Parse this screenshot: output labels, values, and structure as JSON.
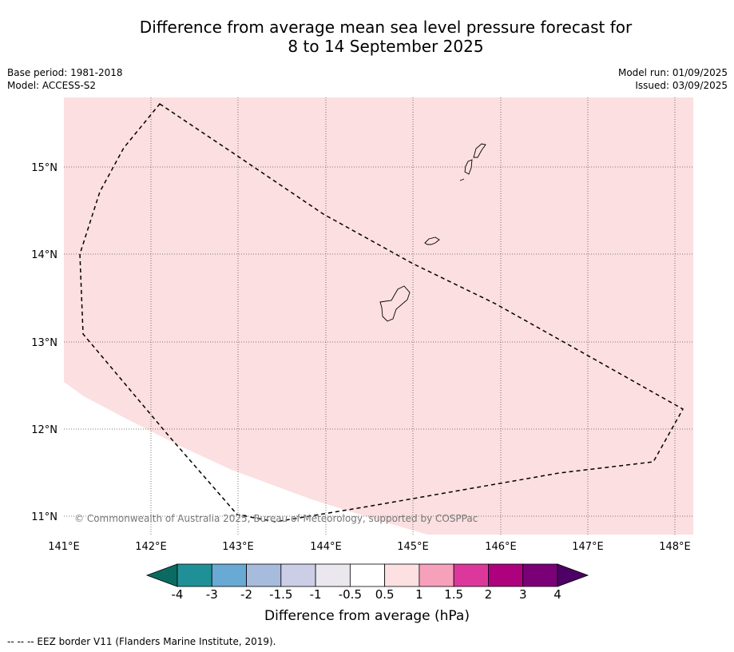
{
  "title_line1": "Difference from average mean sea level pressure forecast for",
  "title_line2": "8 to 14 September 2025",
  "meta": {
    "base_period": "Base period: 1981-2018",
    "model": "Model: ACCESS-S2",
    "model_run": "Model run: 01/09/2025",
    "issued": "Issued: 03/09/2025"
  },
  "map": {
    "lon_ticks": [
      "141°E",
      "142°E",
      "143°E",
      "144°E",
      "145°E",
      "146°E",
      "147°E",
      "148°E"
    ],
    "lat_ticks": [
      "15°N",
      "14°N",
      "13°N",
      "12°N",
      "11°N"
    ],
    "copyright": "© Commonwealth of Australia 2025, Bureau of Meteorology, supported by COSPPac",
    "field_color": "#fcdfe0",
    "background_color": "#ffffff"
  },
  "colorbar": {
    "label": "Difference from average (hPa)",
    "ticks": [
      "-4",
      "-3",
      "-2",
      "-1.5",
      "-1",
      "-0.5",
      "0.5",
      "1",
      "1.5",
      "2",
      "3",
      "4"
    ],
    "colors": [
      "#0b6b62",
      "#1f9196",
      "#68aad3",
      "#a7bbdd",
      "#cccde6",
      "#eae8ee",
      "#ffffff",
      "#fde0e1",
      "#f7a0bc",
      "#dc389c",
      "#ad017e",
      "#7b0078",
      "#4d0066"
    ]
  },
  "footer": "--  --  -- EEZ border V11 (Flanders Marine Institute, 2019)."
}
